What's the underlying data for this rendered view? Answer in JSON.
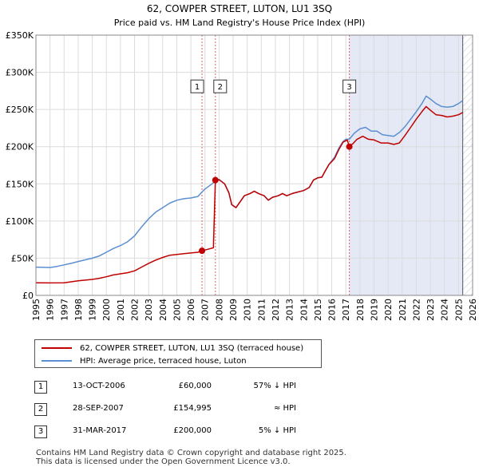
{
  "chart_data": {
    "type": "line",
    "title": "62, COWPER STREET, LUTON, LU1 3SQ",
    "subtitle": "Price paid vs. HM Land Registry's House Price Index (HPI)",
    "xlabel": "",
    "ylabel": "",
    "xlim": [
      1995,
      2026
    ],
    "ylim": [
      0,
      350000
    ],
    "x_ticks": [
      1995,
      1996,
      1997,
      1998,
      1999,
      2000,
      2001,
      2002,
      2003,
      2004,
      2005,
      2006,
      2007,
      2008,
      2009,
      2010,
      2011,
      2012,
      2013,
      2014,
      2015,
      2016,
      2017,
      2018,
      2019,
      2020,
      2021,
      2022,
      2023,
      2024,
      2025,
      2026
    ],
    "y_ticks": [
      0,
      50000,
      100000,
      150000,
      200000,
      250000,
      300000,
      350000
    ],
    "y_tick_labels": [
      "£0",
      "£50K",
      "£100K",
      "£150K",
      "£200K",
      "£250K",
      "£300K",
      "£350K"
    ],
    "grid": true,
    "colors": {
      "property": "#c00000",
      "hpi": "#5b8fd1",
      "future_band": "#e4e9f5",
      "future_hatch": "#c8cfdc",
      "marker_line": "#e06060"
    },
    "future_start": 2025.3,
    "highlight_band": [
      2017.25,
      2025.3
    ],
    "series": [
      {
        "name": "62, COWPER STREET, LUTON, LU1 3SQ (terraced house)",
        "color": "#c00000",
        "points": [
          [
            1995.0,
            17000
          ],
          [
            1996.0,
            16800
          ],
          [
            1997.0,
            17000
          ],
          [
            1997.5,
            18200
          ],
          [
            1998.0,
            19500
          ],
          [
            1999.0,
            21500
          ],
          [
            1999.5,
            23000
          ],
          [
            2000.0,
            25000
          ],
          [
            2000.5,
            27500
          ],
          [
            2001.0,
            29000
          ],
          [
            2001.5,
            30500
          ],
          [
            2002.0,
            33000
          ],
          [
            2002.5,
            38000
          ],
          [
            2003.0,
            43000
          ],
          [
            2003.5,
            47500
          ],
          [
            2004.0,
            51000
          ],
          [
            2004.5,
            54000
          ],
          [
            2005.0,
            55000
          ],
          [
            2005.5,
            56000
          ],
          [
            2006.0,
            57000
          ],
          [
            2006.5,
            58000
          ],
          [
            2006.79,
            60000
          ],
          [
            2007.0,
            61000
          ],
          [
            2007.3,
            62500
          ],
          [
            2007.6,
            64000
          ],
          [
            2007.74,
            154995
          ],
          [
            2008.0,
            155500
          ],
          [
            2008.4,
            150000
          ],
          [
            2008.7,
            138000
          ],
          [
            2008.9,
            122000
          ],
          [
            2009.2,
            118000
          ],
          [
            2009.5,
            126000
          ],
          [
            2009.8,
            134000
          ],
          [
            2010.2,
            137000
          ],
          [
            2010.5,
            140000
          ],
          [
            2010.8,
            137000
          ],
          [
            2011.2,
            134000
          ],
          [
            2011.5,
            128000
          ],
          [
            2011.8,
            132000
          ],
          [
            2012.2,
            134000
          ],
          [
            2012.5,
            137000
          ],
          [
            2012.8,
            134000
          ],
          [
            2013.2,
            137000
          ],
          [
            2013.6,
            139000
          ],
          [
            2014.0,
            141000
          ],
          [
            2014.4,
            145000
          ],
          [
            2014.7,
            155000
          ],
          [
            2015.0,
            158000
          ],
          [
            2015.3,
            159000
          ],
          [
            2015.5,
            166000
          ],
          [
            2015.8,
            176000
          ],
          [
            2016.2,
            184000
          ],
          [
            2016.5,
            196000
          ],
          [
            2016.8,
            206000
          ],
          [
            2017.1,
            209000
          ],
          [
            2017.25,
            200000
          ],
          [
            2017.5,
            204000
          ],
          [
            2017.8,
            210000
          ],
          [
            2018.2,
            214000
          ],
          [
            2018.6,
            210000
          ],
          [
            2019.0,
            209000
          ],
          [
            2019.5,
            205000
          ],
          [
            2020.0,
            205000
          ],
          [
            2020.4,
            203000
          ],
          [
            2020.8,
            205000
          ],
          [
            2021.2,
            215000
          ],
          [
            2021.6,
            226000
          ],
          [
            2022.0,
            237000
          ],
          [
            2022.4,
            247000
          ],
          [
            2022.7,
            254000
          ],
          [
            2023.0,
            249000
          ],
          [
            2023.4,
            243000
          ],
          [
            2023.8,
            242000
          ],
          [
            2024.2,
            240000
          ],
          [
            2024.6,
            241000
          ],
          [
            2025.0,
            243000
          ],
          [
            2025.3,
            246000
          ]
        ]
      },
      {
        "name": "HPI: Average price, terraced house, Luton",
        "color": "#5b8fd1",
        "points": [
          [
            1995.0,
            38000
          ],
          [
            1996.0,
            37500
          ],
          [
            1996.5,
            39000
          ],
          [
            1997.0,
            41000
          ],
          [
            1997.5,
            43000
          ],
          [
            1998.0,
            45500
          ],
          [
            1999.0,
            50000
          ],
          [
            1999.5,
            53000
          ],
          [
            2000.0,
            58000
          ],
          [
            2000.5,
            63000
          ],
          [
            2001.0,
            67000
          ],
          [
            2001.5,
            72000
          ],
          [
            2002.0,
            80000
          ],
          [
            2002.5,
            92000
          ],
          [
            2003.0,
            103000
          ],
          [
            2003.5,
            112000
          ],
          [
            2004.0,
            118000
          ],
          [
            2004.5,
            124000
          ],
          [
            2005.0,
            128000
          ],
          [
            2005.5,
            130000
          ],
          [
            2006.0,
            131000
          ],
          [
            2006.5,
            133000
          ],
          [
            2006.79,
            139000
          ],
          [
            2007.0,
            143000
          ],
          [
            2007.5,
            150000
          ],
          [
            2007.74,
            154000
          ],
          [
            2008.0,
            156000
          ],
          [
            2008.4,
            150000
          ],
          [
            2008.7,
            138000
          ],
          [
            2008.9,
            122000
          ],
          [
            2009.2,
            118000
          ],
          [
            2009.5,
            126000
          ],
          [
            2009.8,
            134000
          ],
          [
            2010.2,
            137000
          ],
          [
            2010.5,
            140000
          ],
          [
            2010.8,
            137000
          ],
          [
            2011.2,
            134000
          ],
          [
            2011.5,
            128000
          ],
          [
            2011.8,
            132000
          ],
          [
            2012.2,
            134000
          ],
          [
            2012.5,
            137000
          ],
          [
            2012.8,
            134000
          ],
          [
            2013.2,
            137000
          ],
          [
            2013.6,
            139000
          ],
          [
            2014.0,
            141000
          ],
          [
            2014.4,
            145000
          ],
          [
            2014.7,
            155000
          ],
          [
            2015.0,
            158000
          ],
          [
            2015.3,
            159000
          ],
          [
            2015.5,
            166000
          ],
          [
            2015.8,
            176000
          ],
          [
            2016.2,
            186000
          ],
          [
            2016.5,
            198000
          ],
          [
            2016.8,
            207000
          ],
          [
            2017.0,
            210000
          ],
          [
            2017.25,
            210000
          ],
          [
            2017.6,
            218000
          ],
          [
            2018.0,
            224000
          ],
          [
            2018.4,
            226000
          ],
          [
            2018.8,
            221000
          ],
          [
            2019.2,
            221000
          ],
          [
            2019.6,
            216000
          ],
          [
            2020.0,
            215000
          ],
          [
            2020.4,
            214000
          ],
          [
            2020.8,
            219000
          ],
          [
            2021.2,
            227000
          ],
          [
            2021.6,
            237000
          ],
          [
            2022.0,
            247000
          ],
          [
            2022.4,
            258000
          ],
          [
            2022.7,
            268000
          ],
          [
            2023.0,
            264000
          ],
          [
            2023.4,
            258000
          ],
          [
            2023.8,
            254000
          ],
          [
            2024.2,
            253000
          ],
          [
            2024.6,
            254000
          ],
          [
            2025.0,
            258000
          ],
          [
            2025.3,
            262000
          ]
        ]
      }
    ],
    "sales": [
      {
        "num": "1",
        "x": 2006.79,
        "price_value": 60000,
        "date": "13-OCT-2006",
        "price": "£60,000",
        "relation": "57% ↓ HPI"
      },
      {
        "num": "2",
        "x": 2007.74,
        "price_value": 154995,
        "date": "28-SEP-2007",
        "price": "£154,995",
        "relation": "≈ HPI"
      },
      {
        "num": "3",
        "x": 2017.25,
        "price_value": 200000,
        "date": "31-MAR-2017",
        "price": "£200,000",
        "relation": "5% ↓ HPI"
      }
    ],
    "sale_labels_at_value": 280000
  },
  "legend": {
    "property_label": "62, COWPER STREET, LUTON, LU1 3SQ (terraced house)",
    "hpi_label": "HPI: Average price, terraced house, Luton"
  },
  "footer": {
    "line1": "Contains HM Land Registry data © Crown copyright and database right 2025.",
    "line2": "This data is licensed under the Open Government Licence v3.0."
  }
}
